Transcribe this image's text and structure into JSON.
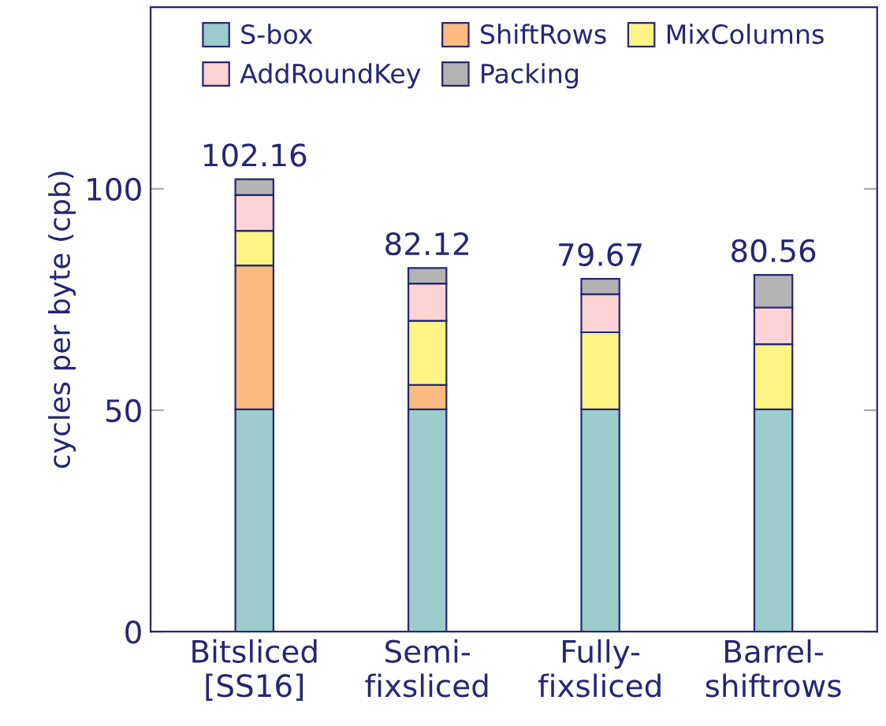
{
  "chart_data": {
    "type": "bar",
    "stacked": true,
    "ylabel": "cycles per byte (cpb)",
    "categories": [
      "Bitsliced\n[SS16]",
      "Semi-\nfixsliced",
      "Fully-\nfixsliced",
      "Barrel-\nshiftrows"
    ],
    "series": [
      {
        "name": "S-box",
        "color": "#9bcbcb",
        "values": [
          50.2,
          50.2,
          50.2,
          50.2
        ]
      },
      {
        "name": "ShiftRows",
        "color": "#fdbb80",
        "values": [
          32.5,
          5.5,
          0,
          0
        ]
      },
      {
        "name": "MixColumns",
        "color": "#fff384",
        "values": [
          7.8,
          14.5,
          17.4,
          14.7
        ]
      },
      {
        "name": "AddRoundKey",
        "color": "#ffd3d3",
        "values": [
          8.1,
          8.4,
          8.6,
          8.3
        ]
      },
      {
        "name": "Packing",
        "color": "#b3b3b3",
        "values": [
          3.56,
          3.52,
          3.47,
          7.36
        ]
      }
    ],
    "totals": [
      "102.16",
      "82.12",
      "79.67",
      "80.56"
    ],
    "ylim": [
      0,
      141
    ],
    "yticks": [
      0,
      50,
      100
    ],
    "grid": false,
    "legend": "top"
  }
}
